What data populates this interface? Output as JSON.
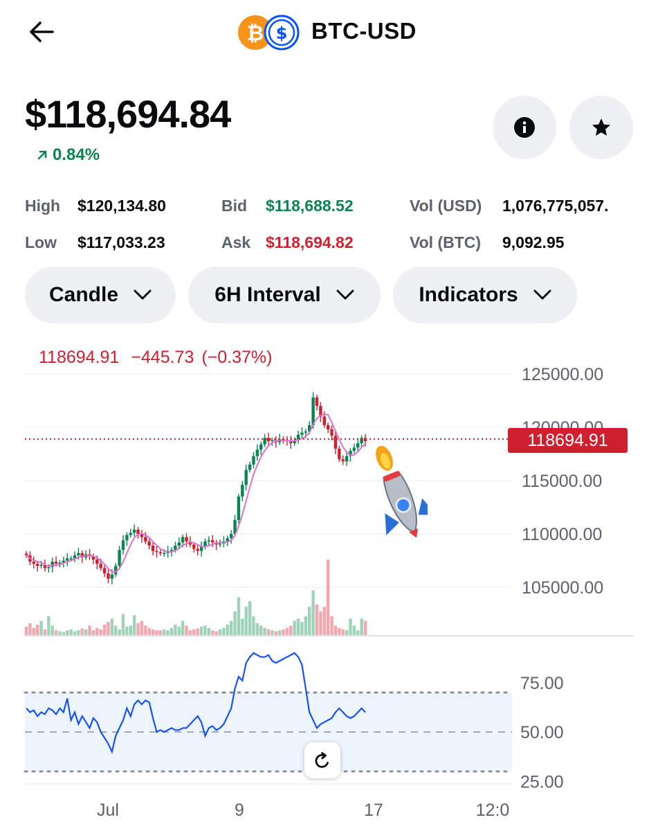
{
  "header": {
    "title": "BTC-USD",
    "base_icon": "bitcoin-icon",
    "quote_icon": "usd-coin-icon"
  },
  "price": {
    "value": "$118,694.84",
    "change": "0.84%",
    "change_color": "#098551"
  },
  "stats": {
    "high_label": "High",
    "high": "$120,134.80",
    "low_label": "Low",
    "low": "$117,033.23",
    "bid_label": "Bid",
    "bid": "$118,688.52",
    "ask_label": "Ask",
    "ask": "$118,694.82",
    "vol_usd_label": "Vol (USD)",
    "vol_usd": "1,076,775,057.",
    "vol_btc_label": "Vol (BTC)",
    "vol_btc": "9,092.95"
  },
  "controls": {
    "chart_type": "Candle",
    "interval": "6H Interval",
    "indicators": "Indicators"
  },
  "colors": {
    "up": "#098551",
    "down": "#cf202f",
    "accent": "#0052ff",
    "ma": "#e070d0",
    "rsi": "#1652f0"
  },
  "chart_data": {
    "type": "candlestick",
    "legend": {
      "last": "118694.91",
      "change": "−445.73",
      "change_pct": "(−0.37%)"
    },
    "last_price_label": "118694.91",
    "last_price": 118694.91,
    "y_ticks": [
      "125000.00",
      "120000.00",
      "115000.00",
      "110000.00",
      "105000.00"
    ],
    "ylim": [
      102500,
      126000
    ],
    "x_ticks": [
      "Jul",
      "9",
      "17",
      "12:0"
    ],
    "close": [
      108000,
      107400,
      107200,
      107000,
      107100,
      106800,
      106900,
      107400,
      107200,
      107300,
      107500,
      107700,
      107700,
      108000,
      108200,
      107800,
      108100,
      107900,
      107600,
      107200,
      106800,
      106300,
      105800,
      106200,
      107000,
      108500,
      109400,
      109900,
      110100,
      110400,
      110000,
      109700,
      109300,
      108900,
      108400,
      108300,
      108200,
      108200,
      108400,
      108500,
      108900,
      109200,
      109700,
      109300,
      109000,
      108600,
      108400,
      108800,
      109300,
      109400,
      109200,
      109000,
      109100,
      109300,
      109600,
      110000,
      111300,
      113500,
      114600,
      116000,
      116500,
      117300,
      117900,
      118400,
      119000,
      118700,
      118800,
      118600,
      118900,
      118800,
      118700,
      118500,
      118800,
      119300,
      119500,
      119600,
      120200,
      122800,
      122000,
      121000,
      120200,
      119800,
      119200,
      118000,
      117000,
      116800,
      117300,
      117800,
      118100,
      118500,
      119000,
      118700
    ],
    "volume": [
      0.18,
      0.25,
      0.15,
      0.22,
      0.3,
      0.12,
      0.4,
      0.2,
      0.1,
      0.08,
      0.06,
      0.1,
      0.12,
      0.08,
      0.1,
      0.14,
      0.12,
      0.2,
      0.1,
      0.15,
      0.12,
      0.22,
      0.28,
      0.35,
      0.2,
      0.12,
      0.45,
      0.18,
      0.2,
      0.42,
      0.25,
      0.3,
      0.2,
      0.15,
      0.12,
      0.1,
      0.1,
      0.12,
      0.1,
      0.15,
      0.22,
      0.18,
      0.3,
      0.2,
      0.1,
      0.12,
      0.14,
      0.18,
      0.2,
      0.15,
      0.1,
      0.08,
      0.12,
      0.15,
      0.22,
      0.3,
      0.5,
      0.8,
      0.35,
      0.6,
      0.72,
      0.4,
      0.25,
      0.2,
      0.15,
      0.12,
      0.1,
      0.08,
      0.1,
      0.12,
      0.15,
      0.2,
      0.3,
      0.35,
      0.28,
      0.4,
      0.6,
      0.95,
      0.65,
      0.5,
      0.6,
      1.6,
      0.4,
      0.2,
      0.15,
      0.12,
      0.1,
      0.35,
      0.2,
      0.1,
      0.35,
      0.3
    ],
    "rsi": {
      "y_ticks": [
        "75.00",
        "50.00",
        "25.00"
      ],
      "ylim": [
        20,
        95
      ],
      "levels": [
        70,
        50,
        30
      ],
      "values": [
        62,
        60,
        61,
        58,
        60,
        59,
        62,
        61,
        59,
        62,
        60,
        67,
        56,
        60,
        54,
        58,
        55,
        52,
        57,
        55,
        50,
        47,
        44,
        40,
        48,
        52,
        56,
        62,
        58,
        64,
        66,
        64,
        66,
        65,
        57,
        50,
        51,
        50,
        51,
        52,
        51,
        51,
        52,
        52,
        54,
        56,
        58,
        55,
        48,
        52,
        53,
        51,
        52,
        54,
        58,
        62,
        72,
        78,
        76,
        85,
        88,
        90,
        89,
        88,
        88,
        89,
        86,
        85,
        86,
        87,
        88,
        89,
        90,
        88,
        84,
        72,
        60,
        56,
        52,
        54,
        55,
        56,
        57,
        60,
        62,
        60,
        58,
        57,
        58,
        60,
        62,
        60
      ]
    }
  }
}
